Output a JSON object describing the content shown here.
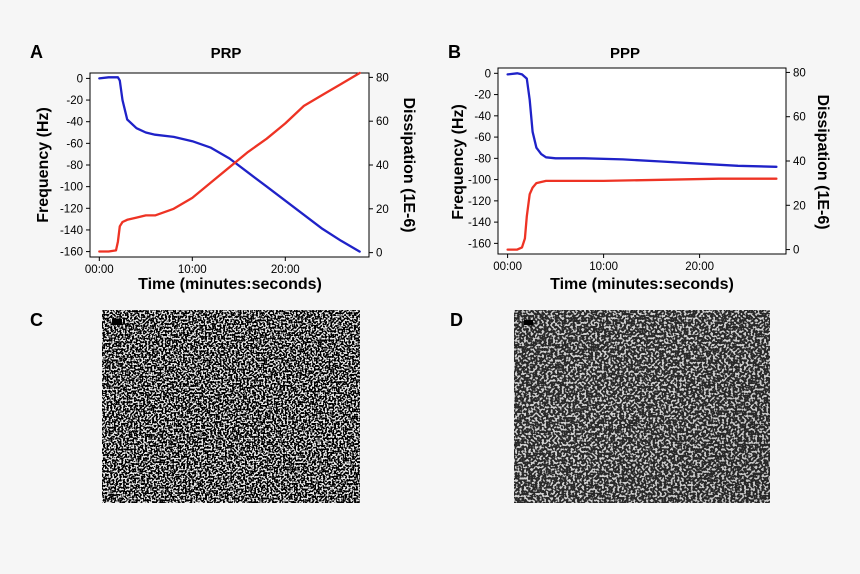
{
  "figure_labels": {
    "A": "A",
    "B": "B",
    "C": "C",
    "D": "D"
  },
  "colors": {
    "frequency": "#1f22c8",
    "dissipation": "#ee3324",
    "background": "#f6f6f6"
  },
  "chart_data": [
    {
      "panel": "A",
      "type": "line",
      "title": "PRP",
      "xlabel": "Time (minutes:seconds)",
      "ylabel": "Frequency (Hz)",
      "y2label": "Dissipation (1E-6)",
      "x_unit": "minutes",
      "xlim": [
        -1,
        29
      ],
      "xticks": [
        0,
        10,
        20
      ],
      "xtick_labels": [
        "00:00",
        "10:00",
        "20:00"
      ],
      "ylim": [
        -165,
        5
      ],
      "yticks": [
        0,
        -20,
        -40,
        -60,
        -80,
        -100,
        -120,
        -140,
        -160
      ],
      "y2lim": [
        -2,
        82
      ],
      "y2ticks": [
        0,
        20,
        40,
        60,
        80
      ],
      "grid": false,
      "series": [
        {
          "axis": "left",
          "x": [
            0,
            1,
            2,
            2.2,
            2.5,
            3,
            4,
            5,
            6,
            8,
            10,
            12,
            14,
            16,
            18,
            20,
            22,
            24,
            26,
            28
          ],
          "y": [
            0,
            1,
            1,
            -2,
            -20,
            -38,
            -46,
            -50,
            -52,
            -54,
            -58,
            -64,
            -74,
            -87,
            -100,
            -113,
            -126,
            -139,
            -150,
            -160
          ]
        },
        {
          "axis": "right",
          "x": [
            0,
            1,
            1.8,
            2,
            2.2,
            2.5,
            3,
            4,
            5,
            6,
            8,
            10,
            12,
            14,
            16,
            18,
            20,
            22,
            24,
            26,
            28
          ],
          "y": [
            0.5,
            0.5,
            1,
            5,
            12,
            14,
            15,
            16,
            17,
            17,
            20,
            25,
            32,
            39,
            46,
            52,
            59,
            67,
            72,
            77,
            82
          ]
        }
      ]
    },
    {
      "panel": "B",
      "type": "line",
      "title": "PPP",
      "xlabel": "Time (minutes:seconds)",
      "ylabel": "Frequency (Hz)",
      "y2label": "Dissipation (1E-6)",
      "x_unit": "minutes",
      "xlim": [
        -1,
        29
      ],
      "xticks": [
        0,
        10,
        20
      ],
      "xtick_labels": [
        "00:00",
        "10:00",
        "20:00"
      ],
      "ylim": [
        -170,
        5
      ],
      "yticks": [
        0,
        -20,
        -40,
        -60,
        -80,
        -100,
        -120,
        -140,
        -160
      ],
      "y2lim": [
        -2,
        82
      ],
      "y2ticks": [
        0,
        20,
        40,
        60,
        80
      ],
      "grid": false,
      "series": [
        {
          "axis": "left",
          "x": [
            0,
            1,
            1.5,
            2,
            2.3,
            2.6,
            3,
            3.5,
            4,
            5,
            8,
            12,
            16,
            20,
            24,
            28
          ],
          "y": [
            -1,
            0,
            -1,
            -5,
            -25,
            -55,
            -70,
            -76,
            -79,
            -80,
            -80,
            -81,
            -83,
            -85,
            -87,
            -88
          ]
        },
        {
          "axis": "right",
          "x": [
            0,
            1,
            1.5,
            1.8,
            2.0,
            2.3,
            2.6,
            3,
            4,
            6,
            10,
            16,
            22,
            28
          ],
          "y": [
            0,
            0,
            1,
            5,
            15,
            25,
            28,
            30,
            31,
            31,
            31,
            31.5,
            32,
            32
          ]
        }
      ]
    }
  ]
}
